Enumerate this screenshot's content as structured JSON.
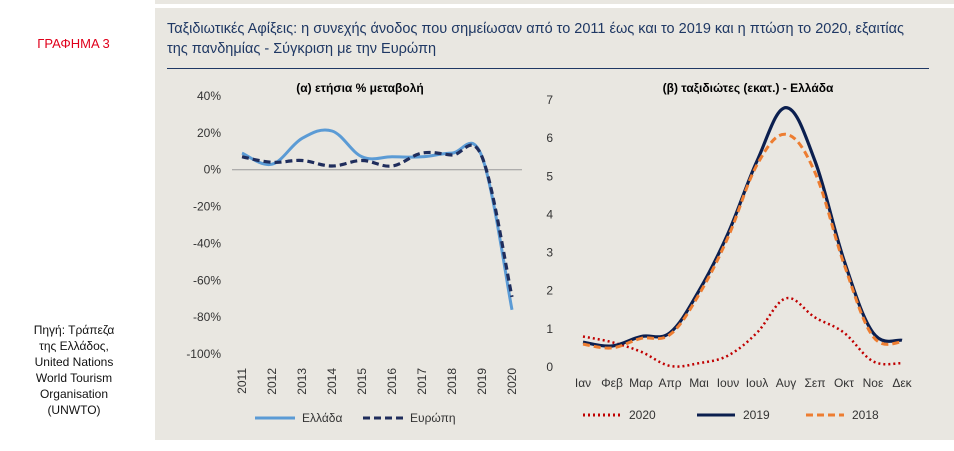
{
  "sidebar": {
    "chart_label": "ΓΡΑΦΗΜΑ 3",
    "source": "Πηγή: Τράπεζα\nτης Ελλάδος,\nUnited Nations\nWorld Tourism\nOrganisation\n(UNWTO)"
  },
  "header": {
    "title": "Ταξιδιωτικές Αφίξεις: η συνεχής άνοδος που σημείωσαν από το 2011 έως και το 2019 και η πτώση το 2020, εξαιτίας της πανδημίας - Σύγκριση με την Ευρώπη"
  },
  "colors": {
    "greece": "#5b9bd5",
    "europe": "#1f2d5c",
    "y2020": "#c00000",
    "y2019": "#0b1f4f",
    "y2018": "#ed7d31"
  },
  "chart_data": [
    {
      "type": "line",
      "title": "(α) ετήσια % μεταβολή",
      "x": [
        "2011",
        "2012",
        "2013",
        "2014",
        "2015",
        "2016",
        "2017",
        "2018",
        "2019",
        "2020"
      ],
      "ylim": [
        -100,
        40
      ],
      "yticks": [
        "40%",
        "20%",
        "0%",
        "-20%",
        "-40%",
        "-60%",
        "-80%",
        "-100%"
      ],
      "series": [
        {
          "name": "Ελλάδα",
          "values": [
            9,
            3,
            17,
            21,
            7,
            7,
            7,
            9,
            7,
            -76
          ],
          "style": "solid"
        },
        {
          "name": "Ευρώπη",
          "values": [
            7,
            4,
            5,
            2,
            5,
            2,
            9,
            8,
            7,
            -69
          ],
          "style": "dashed"
        }
      ]
    },
    {
      "type": "line",
      "title": "(β) ταξιδιώτες (εκατ.) - Ελλάδα",
      "x": [
        "Ιαν",
        "Φεβ",
        "Μαρ",
        "Απρ",
        "Μαι",
        "Ιουν",
        "Ιουλ",
        "Αυγ",
        "Σεπ",
        "Οκτ",
        "Νοε",
        "Δεκ"
      ],
      "ylim": [
        0,
        7
      ],
      "yticks": [
        "7",
        "6",
        "5",
        "4",
        "3",
        "2",
        "1",
        "0"
      ],
      "series": [
        {
          "name": "2020",
          "values": [
            0.8,
            0.65,
            0.4,
            0.03,
            0.1,
            0.3,
            0.9,
            1.8,
            1.3,
            0.9,
            0.15,
            0.1
          ],
          "style": "dotted"
        },
        {
          "name": "2019",
          "values": [
            0.65,
            0.55,
            0.8,
            0.9,
            2.0,
            3.5,
            5.4,
            6.8,
            5.4,
            2.8,
            0.9,
            0.7
          ],
          "style": "solid"
        },
        {
          "name": "2018",
          "values": [
            0.6,
            0.5,
            0.75,
            0.85,
            1.9,
            3.4,
            5.3,
            6.1,
            5.1,
            2.7,
            0.8,
            0.65
          ],
          "style": "dashed"
        }
      ]
    }
  ]
}
